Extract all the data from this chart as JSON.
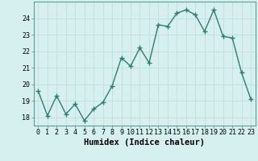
{
  "x": [
    0,
    1,
    2,
    3,
    4,
    5,
    6,
    7,
    8,
    9,
    10,
    11,
    12,
    13,
    14,
    15,
    16,
    17,
    18,
    19,
    20,
    21,
    22,
    23
  ],
  "y": [
    19.6,
    18.1,
    19.3,
    18.2,
    18.8,
    17.8,
    18.5,
    18.9,
    19.9,
    21.6,
    21.1,
    22.2,
    21.3,
    23.6,
    23.5,
    24.3,
    24.5,
    24.2,
    23.2,
    24.5,
    22.9,
    22.8,
    20.7,
    19.1
  ],
  "line_color": "#2e7d70",
  "marker": "+",
  "marker_size": 4,
  "marker_color": "#2e7d70",
  "bg_color": "#d6f0ef",
  "grid_major_color": "#c4e0de",
  "grid_minor_color": "#c4e0de",
  "xlabel": "Humidex (Indice chaleur)",
  "xlim": [
    -0.5,
    23.5
  ],
  "ylim": [
    17.5,
    25.0
  ],
  "yticks": [
    18,
    19,
    20,
    21,
    22,
    23,
    24
  ],
  "xticks": [
    0,
    1,
    2,
    3,
    4,
    5,
    6,
    7,
    8,
    9,
    10,
    11,
    12,
    13,
    14,
    15,
    16,
    17,
    18,
    19,
    20,
    21,
    22,
    23
  ],
  "tick_fontsize": 6,
  "label_fontsize": 7.5,
  "linewidth": 1.0
}
